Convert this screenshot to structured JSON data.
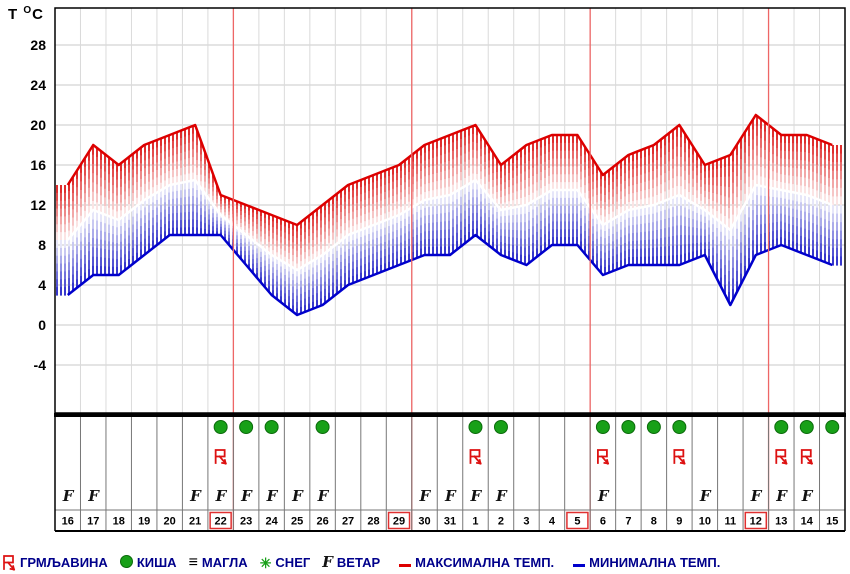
{
  "axis": {
    "title_t": "T ",
    "title_deg": "O",
    "title_c": "C",
    "ticks": [
      28,
      24,
      20,
      16,
      12,
      8,
      4,
      0,
      -4
    ]
  },
  "colors": {
    "max": "#dd0000",
    "min": "#0000cc",
    "rain": "#18a018",
    "rain_edge": "#0b6b0b",
    "thunder": "#dd1111",
    "week": "#ee6666",
    "legend_text": "#00008b",
    "grid": "#c9c9c9"
  },
  "chart_data": {
    "type": "line",
    "title": "",
    "xlabel": "",
    "ylabel": "T °C",
    "ylim": [
      -9,
      32
    ],
    "grid": true,
    "legend_position": "bottom",
    "x": [
      "16",
      "17",
      "18",
      "19",
      "20",
      "21",
      "22",
      "23",
      "24",
      "25",
      "26",
      "27",
      "28",
      "29",
      "30",
      "31",
      "1",
      "2",
      "3",
      "4",
      "5",
      "6",
      "7",
      "8",
      "9",
      "10",
      "11",
      "12",
      "13",
      "14",
      "15"
    ],
    "series": [
      {
        "name": "МАКСИМАЛНА ТЕМП.",
        "color": "#dd0000",
        "values": [
          14,
          18,
          16,
          18,
          19,
          20,
          13,
          12,
          11,
          10,
          12,
          14,
          15,
          16,
          18,
          19,
          20,
          16,
          18,
          19,
          19,
          15,
          17,
          18,
          20,
          16,
          17,
          21,
          19,
          19,
          18
        ]
      },
      {
        "name": "МИНИМАЛНА ТЕМП.",
        "color": "#0000cc",
        "values": [
          3,
          5,
          5,
          7,
          9,
          9,
          9,
          6,
          3,
          1,
          2,
          4,
          5,
          6,
          7,
          7,
          9,
          7,
          6,
          8,
          8,
          5,
          6,
          6,
          6,
          7,
          2,
          7,
          8,
          7,
          6
        ]
      }
    ],
    "week_boundaries_after": [
      "22",
      "29",
      "5",
      "12"
    ]
  },
  "days": [
    {
      "label": "16",
      "wind": true
    },
    {
      "label": "17",
      "wind": true
    },
    {
      "label": "18"
    },
    {
      "label": "19"
    },
    {
      "label": "20"
    },
    {
      "label": "21",
      "wind": true
    },
    {
      "label": "22",
      "rain": true,
      "thunder": true,
      "wind": true,
      "red": true
    },
    {
      "label": "23",
      "rain": true,
      "wind": true
    },
    {
      "label": "24",
      "rain": true,
      "wind": true
    },
    {
      "label": "25",
      "wind": true
    },
    {
      "label": "26",
      "rain": true,
      "wind": true
    },
    {
      "label": "27"
    },
    {
      "label": "28"
    },
    {
      "label": "29",
      "red": true
    },
    {
      "label": "30",
      "wind": true
    },
    {
      "label": "31",
      "wind": true
    },
    {
      "label": "1",
      "rain": true,
      "thunder": true,
      "wind": true
    },
    {
      "label": "2",
      "rain": true,
      "wind": true
    },
    {
      "label": "3"
    },
    {
      "label": "4"
    },
    {
      "label": "5",
      "red": true
    },
    {
      "label": "6",
      "rain": true,
      "thunder": true,
      "wind": true
    },
    {
      "label": "7",
      "rain": true
    },
    {
      "label": "8",
      "rain": true
    },
    {
      "label": "9",
      "rain": true,
      "thunder": true
    },
    {
      "label": "10",
      "wind": true
    },
    {
      "label": "11"
    },
    {
      "label": "12",
      "wind": true,
      "red": true
    },
    {
      "label": "13",
      "rain": true,
      "thunder": true,
      "wind": true
    },
    {
      "label": "14",
      "rain": true,
      "thunder": true,
      "wind": true
    },
    {
      "label": "15",
      "rain": true
    }
  ],
  "legend": {
    "items": [
      {
        "icon": "thunder",
        "label": "ГРМЉАВИНА"
      },
      {
        "icon": "rain",
        "label": "КИША"
      },
      {
        "icon": "fog",
        "label": "МАГЛА"
      },
      {
        "icon": "snow",
        "label": "СНЕГ"
      },
      {
        "icon": "wind",
        "label": "ВЕТАР"
      },
      {
        "icon": "maxline",
        "label": "МАКСИМАЛНА ТЕМП."
      },
      {
        "icon": "minline",
        "label": "МИНИМАЛНА ТЕМП."
      }
    ]
  }
}
